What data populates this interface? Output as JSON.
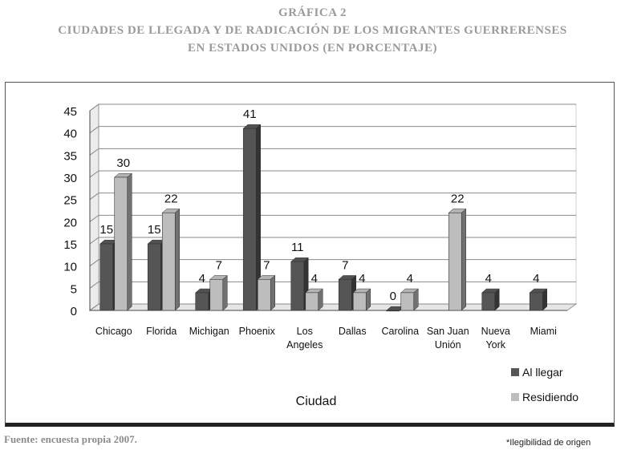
{
  "header": {
    "line1": "GRÁFICA 2",
    "line2": "CIUDADES DE LLEGADA Y DE RADICACIÓN DE LOS MIGRANTES GUERRERENSES",
    "line3": "EN ESTADOS UNIDOS (EN PORCENTAJE)"
  },
  "footer": {
    "source": "Fuente: encuesta propia 2007.",
    "note": "*Ilegibilidad de origen"
  },
  "colors": {
    "al_llegar": "#555555",
    "residiendo": "#bdbdbd"
  },
  "chart_data": {
    "type": "bar",
    "title": "",
    "xlabel": "Ciudad",
    "ylabel": "",
    "ylim": [
      0,
      45
    ],
    "yticks": [
      0,
      5,
      10,
      15,
      20,
      25,
      30,
      35,
      40,
      45
    ],
    "grid": true,
    "legend": "right",
    "categories": [
      [
        "Chicago"
      ],
      [
        "Florida"
      ],
      [
        "Michigan"
      ],
      [
        "Phoenix"
      ],
      [
        "Los",
        "Angeles"
      ],
      [
        "Dallas"
      ],
      [
        "Carolina"
      ],
      [
        "San Juan",
        "Unión"
      ],
      [
        "Nueva",
        "York"
      ],
      [
        "Miami"
      ]
    ],
    "series": [
      {
        "name": "Al llegar",
        "values": [
          15,
          15,
          4,
          41,
          11,
          7,
          0,
          null,
          4,
          4
        ]
      },
      {
        "name": "Residiendo",
        "values": [
          30,
          22,
          7,
          7,
          4,
          4,
          4,
          22,
          null,
          null
        ]
      }
    ]
  }
}
